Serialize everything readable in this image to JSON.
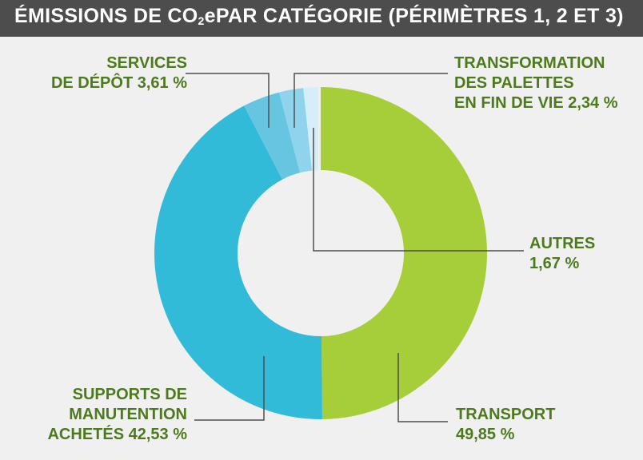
{
  "title": {
    "prefix": "ÉMISSIONS DE CO",
    "sub": "2",
    "suffix": "ePAR CATÉGORIE (PÉRIMÈTRES 1, 2 ET 3)"
  },
  "colors": {
    "background": "#f0f0f0",
    "title_bar": "#4d4d4d",
    "label_text": "#4e7a1e",
    "leader": "#4d4d4d"
  },
  "labels": {
    "transport": [
      "TRANSPORT",
      "49,85 %"
    ],
    "supports": [
      "SUPPORTS DE",
      "MANUTENTION",
      "ACHETÉS 42,53 %"
    ],
    "services": [
      "SERVICES",
      "DE DÉPÔT 3,61 %"
    ],
    "palettes": [
      "TRANSFORMATION",
      "DES PALETTES",
      "EN FIN DE VIE 2,34 %"
    ],
    "autres": [
      "AUTRES",
      "1,67 %"
    ]
  },
  "chart_data": {
    "type": "pie",
    "variant": "donut",
    "title": "ÉMISSIONS DE CO2ePAR CATÉGORIE (PÉRIMÈTRES 1, 2 ET 3)",
    "categories": [
      "TRANSPORT",
      "SUPPORTS DE MANUTENTION ACHETÉS",
      "SERVICES DE DÉPÔT",
      "TRANSFORMATION DES PALETTES EN FIN DE VIE",
      "AUTRES"
    ],
    "values": [
      49.85,
      42.53,
      3.61,
      2.34,
      1.67
    ],
    "unit": "%",
    "colors": [
      "#a6ce39",
      "#32bad9",
      "#66c6e1",
      "#8fd4ec",
      "#d6eef7"
    ]
  }
}
